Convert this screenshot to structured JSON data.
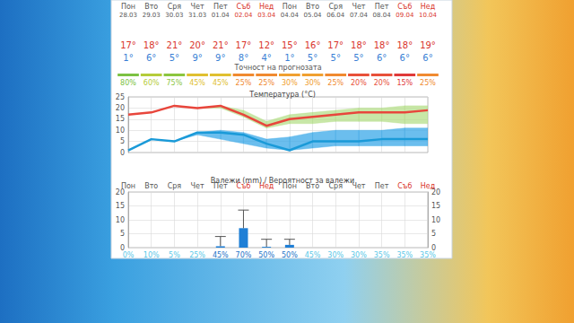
{
  "header": {
    "days": [
      "Пон",
      "Вто",
      "Сря",
      "Чет",
      "Пет",
      "Съб",
      "Нед",
      "Пон",
      "Вто",
      "Сря",
      "Чет",
      "Пет",
      "Съб",
      "Нед"
    ],
    "day_colors": [
      "#555555",
      "#555555",
      "#555555",
      "#555555",
      "#555555",
      "#d9342b",
      "#d9342b",
      "#555555",
      "#555555",
      "#555555",
      "#555555",
      "#555555",
      "#d9342b",
      "#d9342b"
    ],
    "dates": [
      "28.03",
      "29.03",
      "30.03",
      "31.03",
      "01.04",
      "02.04",
      "03.04",
      "04.04",
      "05.04",
      "06.04",
      "07.04",
      "08.04",
      "09.04",
      "10.04"
    ],
    "max_temps": [
      "17°",
      "18°",
      "21°",
      "20°",
      "21°",
      "17°",
      "12°",
      "15°",
      "16°",
      "17°",
      "18°",
      "18°",
      "18°",
      "19°"
    ],
    "min_temps": [
      "1°",
      "6°",
      "5°",
      "9°",
      "9°",
      "8°",
      "4°",
      "1°",
      "5°",
      "5°",
      "5°",
      "6°",
      "6°",
      "6°"
    ],
    "accuracy_title": "Точност на прогнозата",
    "accuracy": [
      "80%",
      "60%",
      "75%",
      "45%",
      "45%",
      "25%",
      "25%",
      "30%",
      "30%",
      "25%",
      "20%",
      "20%",
      "15%",
      "25%"
    ],
    "accuracy_colors": [
      "#7cc242",
      "#b5cc3a",
      "#8cc63f",
      "#e0c030",
      "#e0c030",
      "#f08a30",
      "#f08a30",
      "#f0a030",
      "#f0a030",
      "#f08a30",
      "#e8503a",
      "#e8503a",
      "#e03a3a",
      "#f08a30"
    ]
  },
  "precipitation_probability": [
    "0%",
    "10%",
    "5%",
    "25%",
    "45%",
    "70%",
    "50%",
    "50%",
    "45%",
    "30%",
    "30%",
    "35%",
    "35%",
    "35%"
  ],
  "precipitation_probability_colors": [
    "#5ac8e8",
    "#5ac8e8",
    "#5ac8e8",
    "#5ac8e8",
    "#1e73c8",
    "#1e73c8",
    "#1e73c8",
    "#1e73c8",
    "#5ac8e8",
    "#5ac8e8",
    "#5ac8e8",
    "#5ac8e8",
    "#5ac8e8",
    "#5ac8e8"
  ],
  "chart_data": [
    {
      "type": "line",
      "title": "Температура (°C)",
      "categories": [
        "Пон",
        "Вто",
        "Сря",
        "Чет",
        "Пет",
        "Съб",
        "Нед",
        "Пон",
        "Вто",
        "Сря",
        "Чет",
        "Пет",
        "Съб",
        "Нед"
      ],
      "ylim": [
        0,
        25
      ],
      "yticks": [
        0,
        5,
        10,
        15,
        20,
        25
      ],
      "grid": true,
      "tick_labels": "y",
      "series": [
        {
          "color": "#e8463c",
          "values": [
            17,
            18,
            21,
            20,
            21,
            17,
            12,
            15,
            16,
            17,
            18,
            18,
            18,
            19
          ],
          "band_low": [
            17,
            18,
            21,
            20,
            20,
            16,
            11,
            13,
            13,
            14,
            14,
            14,
            13,
            13
          ],
          "band_high": [
            17,
            18,
            21,
            20,
            21,
            19,
            14,
            17,
            18,
            19,
            20,
            20,
            21,
            21
          ],
          "band_color": "#b5df8a"
        },
        {
          "color": "#1a9ad8",
          "values": [
            1,
            6,
            5,
            9,
            9,
            8,
            4,
            1,
            5,
            5,
            5,
            6,
            6,
            6
          ],
          "band_low": [
            1,
            6,
            5,
            8,
            6,
            4,
            2,
            1,
            2,
            3,
            3,
            3,
            3,
            3
          ],
          "band_high": [
            1,
            6,
            5,
            9,
            10,
            9,
            6,
            7,
            9,
            10,
            10,
            10,
            11,
            11
          ],
          "band_color": "#3aa8e8"
        }
      ]
    },
    {
      "type": "bar",
      "title": "Валежи (mm) / Вероятност за валежи",
      "categories": [
        "Пон",
        "Вто",
        "Сря",
        "Чет",
        "Пет",
        "Съб",
        "Нед",
        "Пон",
        "Вто",
        "Сря",
        "Чет",
        "Пет",
        "Съб",
        "Нед"
      ],
      "ylim": [
        0,
        20
      ],
      "yticks": [
        0,
        5,
        10,
        15,
        20
      ],
      "y2lim": [
        0,
        20
      ],
      "y2ticks": [
        0,
        5,
        10,
        15,
        20
      ],
      "grid": true,
      "series": [
        {
          "color": "#1f7fd6",
          "values": [
            0,
            0,
            0,
            0,
            0.5,
            7,
            0.3,
            1,
            0,
            0,
            0,
            0,
            0,
            0
          ],
          "error_high": [
            null,
            null,
            null,
            null,
            4,
            13.5,
            3,
            3,
            null,
            null,
            null,
            null,
            null,
            null
          ]
        }
      ]
    }
  ]
}
